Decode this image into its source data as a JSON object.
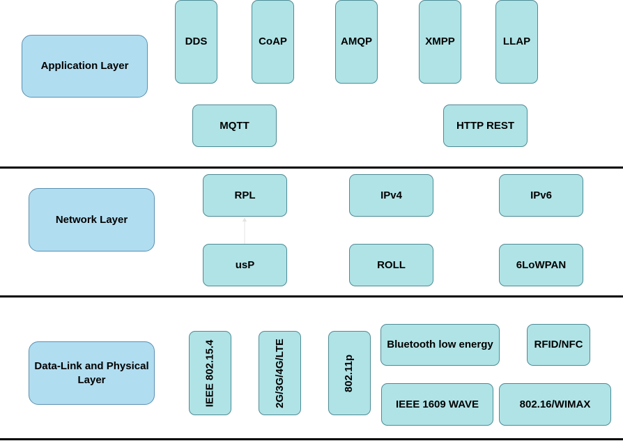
{
  "layers": {
    "application": "Application Layer",
    "network": "Network Layer",
    "datalink": "Data-Link and Physical Layer"
  },
  "application": {
    "dds": "DDS",
    "coap": "CoAP",
    "amqp": "AMQP",
    "xmpp": "XMPP",
    "llap": "LLAP",
    "mqtt": "MQTT",
    "http": "HTTP REST"
  },
  "network": {
    "rpl": "RPL",
    "ipv4": "IPv4",
    "ipv6": "IPv6",
    "usp": "usP",
    "roll": "ROLL",
    "lowpan": "6LoWPAN"
  },
  "datalink": {
    "ieee802154": "IEEE 802.15.4",
    "cellular": "2G/3G/4G/LTE",
    "wifi": "802.11p",
    "ble": "Bluetooth low energy",
    "rfid": "RFID/NFC",
    "wave": "IEEE 1609 WAVE",
    "wimax": "802.16/WIMAX"
  },
  "colors": {
    "protocol_fill": "#b0e3e6",
    "protocol_border": "#4d8a94",
    "layer_fill": "#b1ddf0",
    "layer_border": "#5a8fb0",
    "divider": "#000000"
  }
}
